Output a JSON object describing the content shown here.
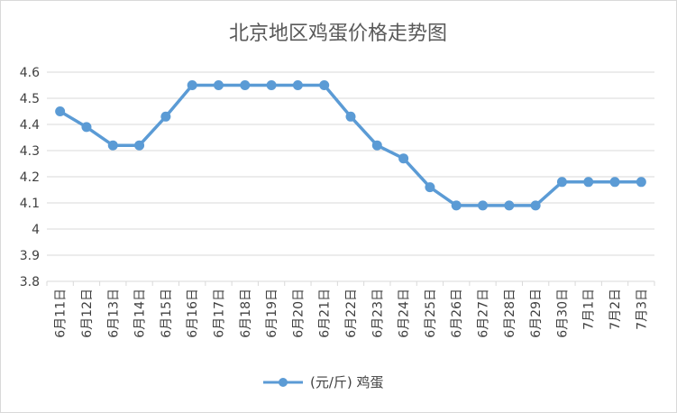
{
  "chart_data": {
    "type": "line",
    "title": "北京地区鸡蛋价格走势图",
    "categories": [
      "6月11日",
      "6月12日",
      "6月13日",
      "6月14日",
      "6月15日",
      "6月16日",
      "6月17日",
      "6月18日",
      "6月19日",
      "6月20日",
      "6月21日",
      "6月22日",
      "6月23日",
      "6月24日",
      "6月25日",
      "6月26日",
      "6月27日",
      "6月28日",
      "6月29日",
      "6月30日",
      "7月1日",
      "7月2日",
      "7月3日"
    ],
    "series": [
      {
        "name": "(元/斤) 鸡蛋",
        "color": "#5B9BD5",
        "values": [
          4.45,
          4.39,
          4.32,
          4.32,
          4.43,
          4.55,
          4.55,
          4.55,
          4.55,
          4.55,
          4.55,
          4.43,
          4.32,
          4.27,
          4.16,
          4.09,
          4.09,
          4.09,
          4.09,
          4.18,
          4.18,
          4.18,
          4.18
        ]
      }
    ],
    "ylim": [
      3.8,
      4.6
    ],
    "yticks": [
      "3.8",
      "3.9",
      "4",
      "4.1",
      "4.2",
      "4.3",
      "4.4",
      "4.5",
      "4.6"
    ],
    "grid": true,
    "legend_position": "bottom"
  }
}
